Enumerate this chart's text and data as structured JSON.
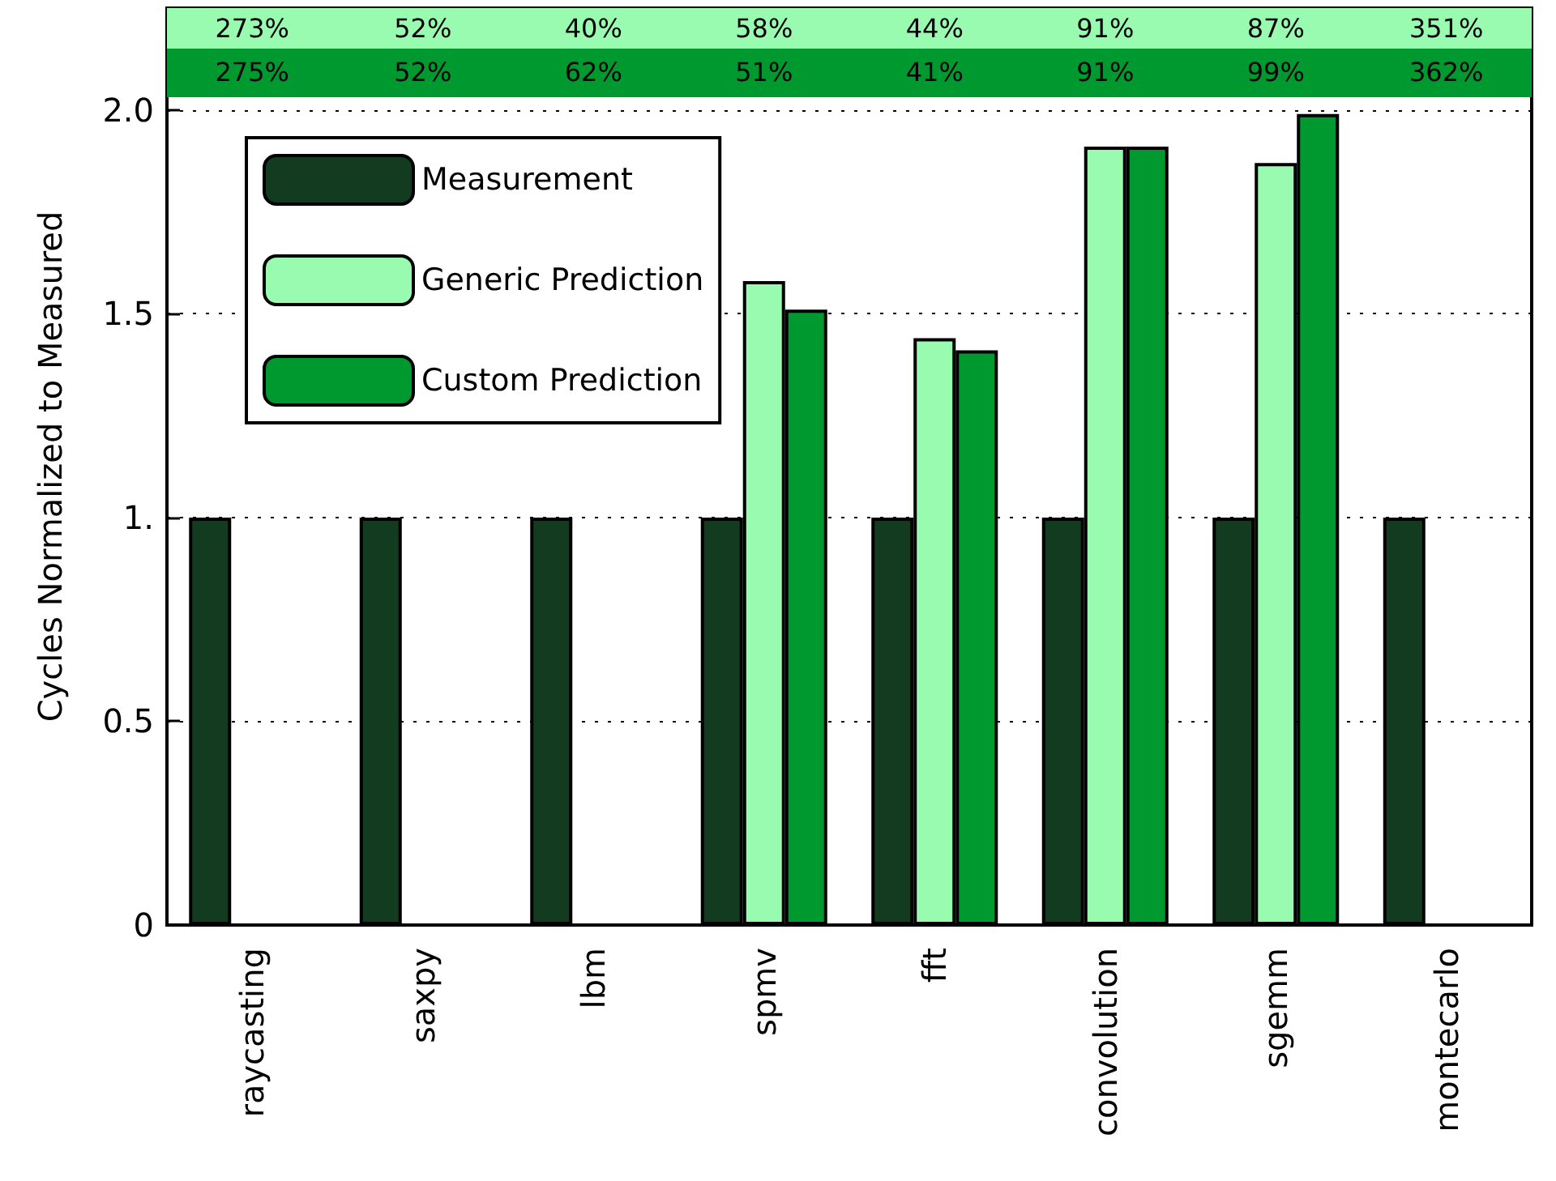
{
  "chart_data": {
    "type": "bar",
    "ylabel": "Cycles Normalized to Measured",
    "categories": [
      "raycasting",
      "saxpy",
      "lbm",
      "spmv",
      "fft",
      "convolution",
      "sgemm",
      "montecarlo"
    ],
    "series": [
      {
        "name": "Measurement",
        "color": "#133b1f",
        "values": [
          1,
          1,
          1,
          1,
          1,
          1,
          1,
          1
        ]
      },
      {
        "name": "Generic Prediction",
        "color": "#99fbb0",
        "values": [
          null,
          null,
          null,
          1.58,
          1.44,
          1.91,
          1.87,
          null
        ]
      },
      {
        "name": "Custom Prediction",
        "color": "#00992f",
        "values": [
          null,
          null,
          null,
          1.51,
          1.41,
          1.91,
          1.99,
          null
        ]
      }
    ],
    "annotations": [
      "273%",
      "52%",
      "40%",
      "58%",
      "44%",
      "91%",
      "87%",
      "351%",
      "275%",
      "52%",
      "62%",
      "51%",
      "41%",
      "91%",
      "99%",
      "362%"
    ],
    "ylim": [
      0,
      2.25
    ],
    "yticks": [
      0,
      0.5,
      {
        "value": 1,
        "label": "1."
      },
      1.5,
      {
        "value": 2,
        "label": "2.0"
      }
    ],
    "grid": "y",
    "legend": "top left"
  }
}
